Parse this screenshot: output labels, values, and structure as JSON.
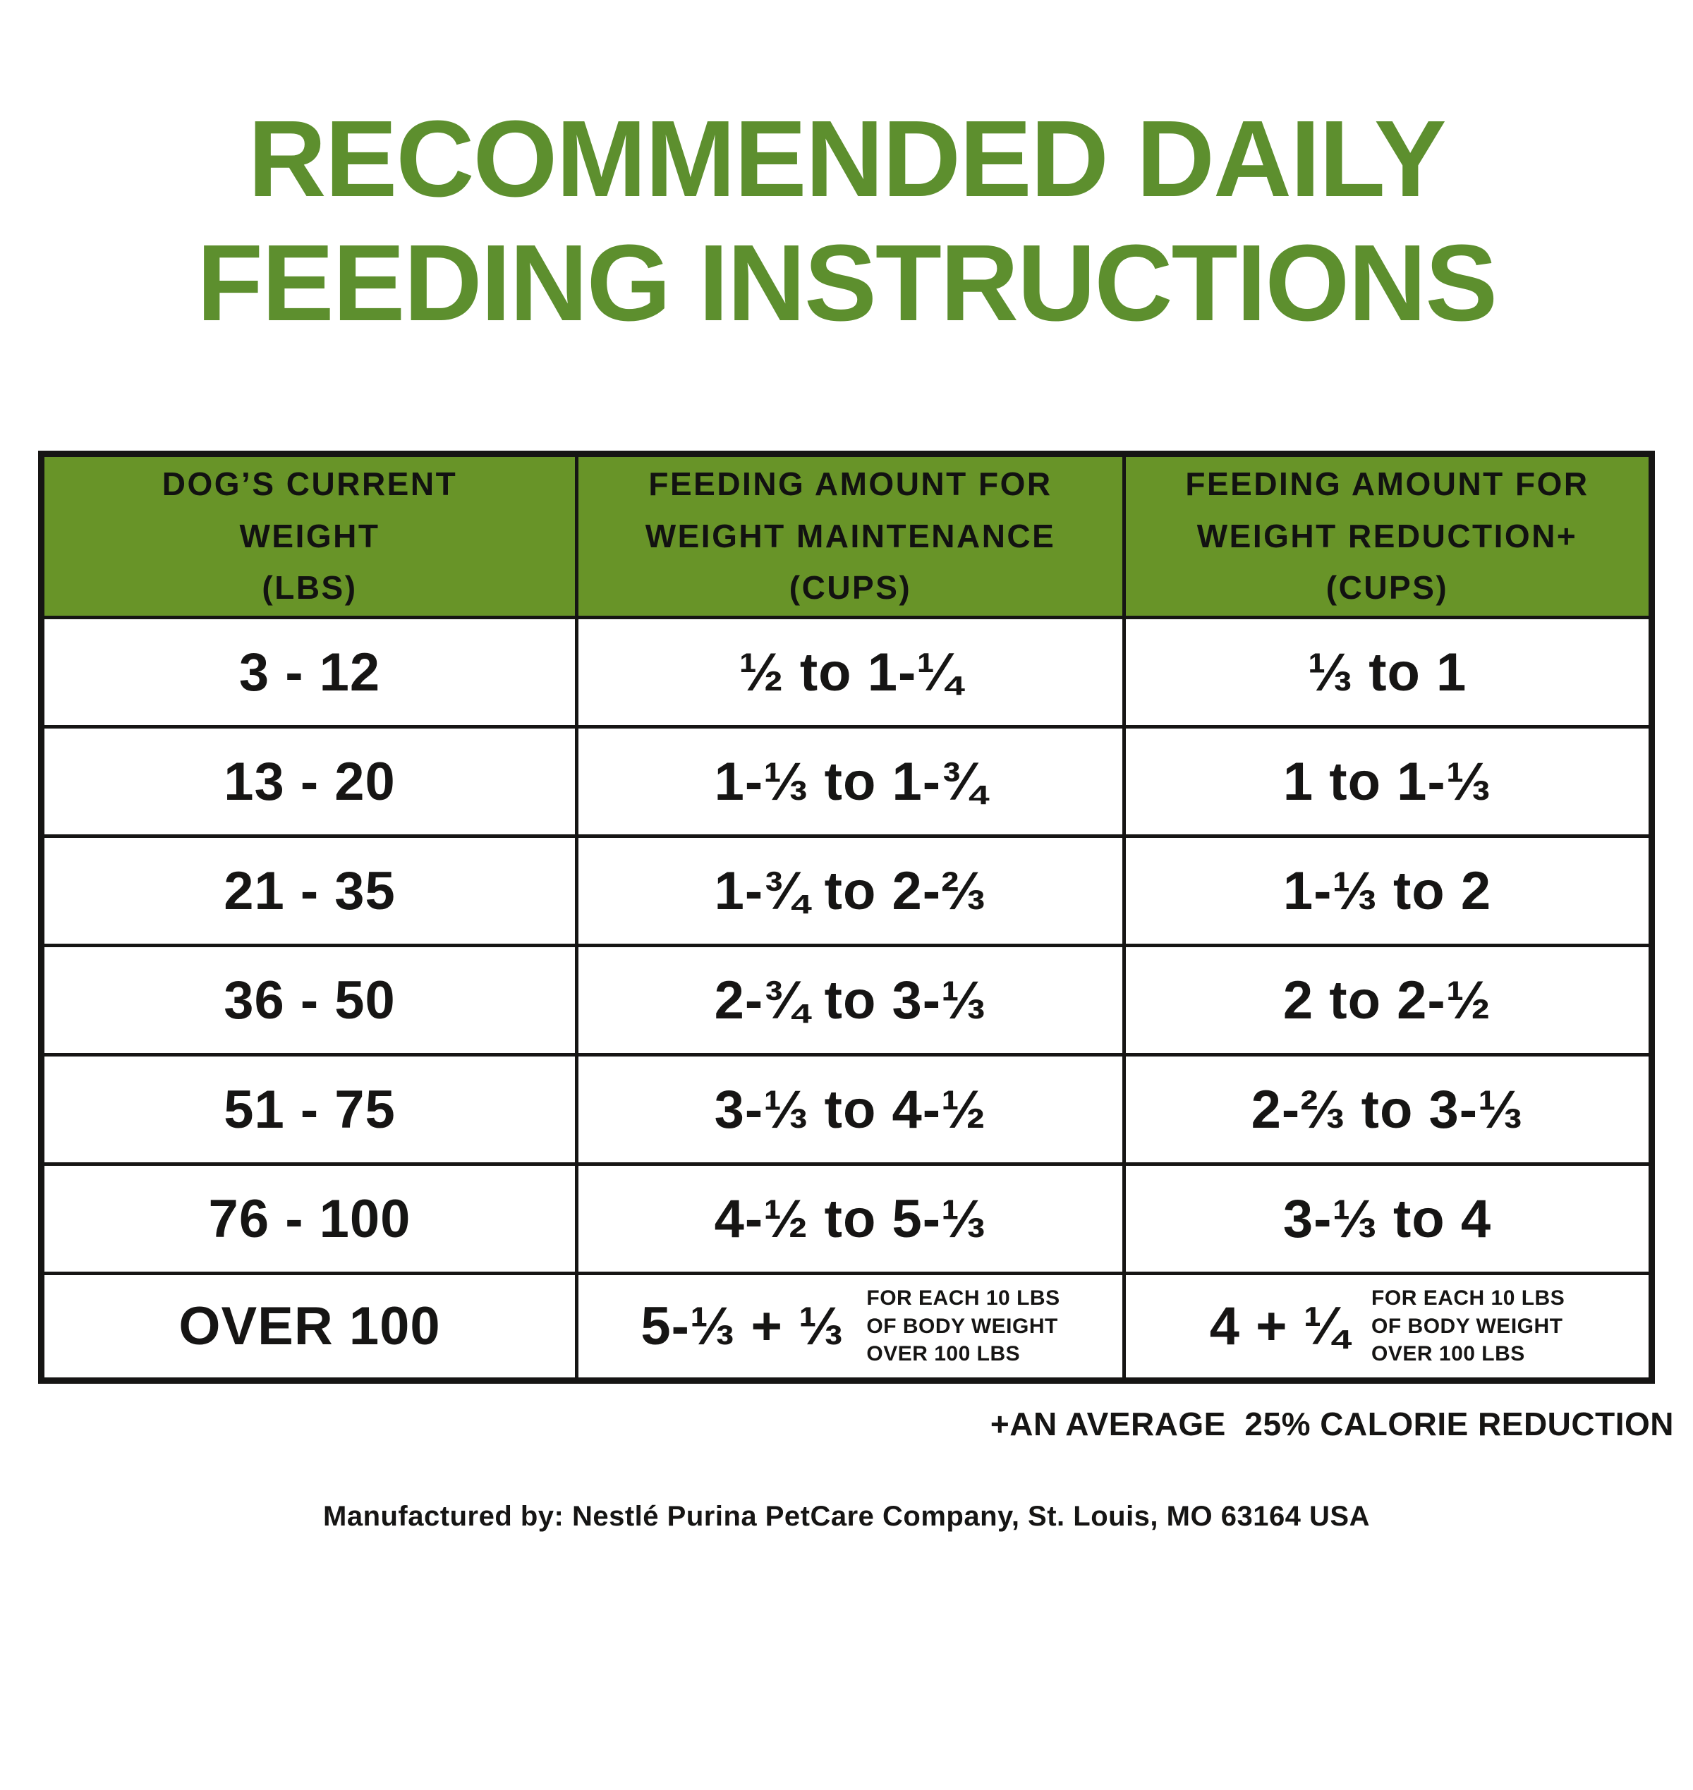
{
  "colors": {
    "title_green": "#5d8f2e",
    "header_green": "#689428",
    "ink": "#161514"
  },
  "title": {
    "line1": "RECOMMENDED DAILY",
    "line2": "FEEDING INSTRUCTIONS"
  },
  "table": {
    "headers": [
      {
        "lines": [
          "DOG’S CURRENT",
          "WEIGHT",
          "(LBS)"
        ]
      },
      {
        "lines": [
          "FEEDING AMOUNT FOR",
          "WEIGHT MAINTENANCE",
          "(CUPS)"
        ]
      },
      {
        "lines": [
          "FEEDING AMOUNT FOR",
          "WEIGHT REDUCTION+",
          "(CUPS)"
        ]
      }
    ],
    "rows": [
      {
        "weight": "3 - 12",
        "maintenance": "½ to 1-¼",
        "reduction": "⅓ to 1"
      },
      {
        "weight": "13 - 20",
        "maintenance": "1-⅓ to 1-¾",
        "reduction": "1 to 1-⅓"
      },
      {
        "weight": "21 - 35",
        "maintenance": "1-¾ to 2-⅔",
        "reduction": "1-⅓ to 2"
      },
      {
        "weight": "36 - 50",
        "maintenance": "2-¾ to 3-⅓",
        "reduction": "2 to 2-½"
      },
      {
        "weight": "51 - 75",
        "maintenance": "3-⅓ to 4-½",
        "reduction": "2-⅔ to 3-⅓"
      },
      {
        "weight": "76 - 100",
        "maintenance": "4-½ to 5-⅓",
        "reduction": "3-⅓ to 4"
      }
    ],
    "last_row": {
      "weight": "OVER 100",
      "maintenance_value": "5-⅓ + ⅓",
      "maintenance_note_lines": [
        "FOR EACH 10 LBS",
        "OF BODY WEIGHT",
        "OVER 100 LBS"
      ],
      "reduction_value": "4 + ¼",
      "reduction_note_lines": [
        "FOR EACH 10 LBS",
        "OF BODY WEIGHT",
        "OVER 100 LBS"
      ]
    }
  },
  "footnote": "+AN AVERAGE  25% CALORIE REDUCTION",
  "manufacturer": "Manufactured by: Nestlé Purina PetCare Company, St. Louis, MO 63164 USA"
}
